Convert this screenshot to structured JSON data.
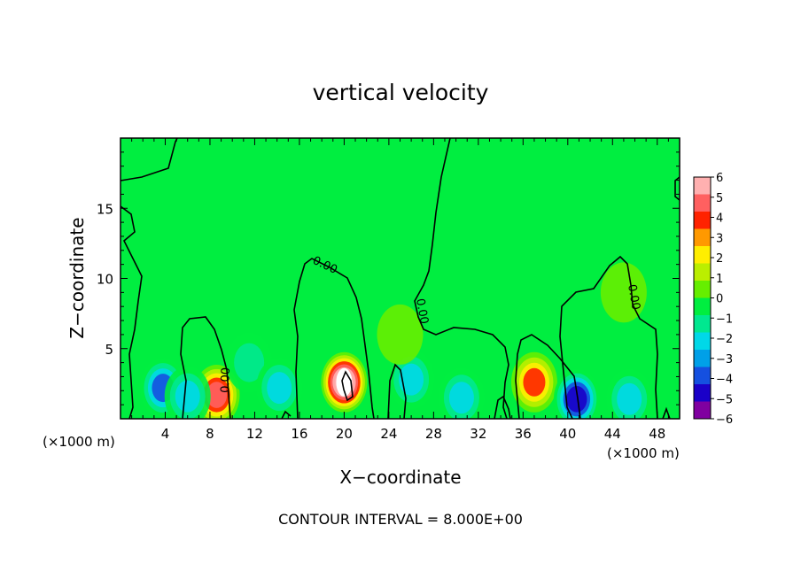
{
  "chart_data": {
    "type": "heatmap",
    "title": "vertical velocity",
    "xlabel": "X−coordinate",
    "ylabel": "Z−coordinate",
    "x_unit_left": "(×1000 m)",
    "x_unit_right": "(×1000 m)",
    "footer": "CONTOUR INTERVAL = 8.000E+00",
    "xlim": [
      0,
      50
    ],
    "ylim": [
      0,
      20
    ],
    "x_ticks": [
      4,
      8,
      12,
      16,
      20,
      24,
      28,
      32,
      36,
      40,
      44,
      48
    ],
    "y_ticks": [
      5,
      10,
      15
    ],
    "contour_labels": [
      "0.00",
      "0.00",
      "0.00",
      "0.00"
    ],
    "colorbar": {
      "min": -6,
      "max": 6,
      "tick_labels": [
        "6",
        "5",
        "4",
        "3",
        "2",
        "1",
        "0",
        "−1",
        "−2",
        "−3",
        "−4",
        "−5",
        "−6"
      ],
      "colors": [
        "#8000a0",
        "#1a00c8",
        "#1550e0",
        "#00a0e8",
        "#00d8e8",
        "#00e890",
        "#00ee40",
        "#66ee00",
        "#bbee00",
        "#ffee00",
        "#ff9900",
        "#ff2200",
        "#ff6060",
        "#ffb0b0"
      ]
    },
    "features": [
      {
        "x": 8.6,
        "z": 1.7,
        "value": 4.5
      },
      {
        "x": 20.0,
        "z": 2.6,
        "value": 6.5
      },
      {
        "x": 37.0,
        "z": 2.6,
        "value": 3.5
      },
      {
        "x": 3.8,
        "z": 2.2,
        "value": -3.5
      },
      {
        "x": 6.0,
        "z": 1.6,
        "value": -3.0
      },
      {
        "x": 11.5,
        "z": 4.0,
        "value": -2.0
      },
      {
        "x": 14.2,
        "z": 2.2,
        "value": -2.5
      },
      {
        "x": 26.0,
        "z": 2.8,
        "value": -3.0
      },
      {
        "x": 30.5,
        "z": 1.5,
        "value": -3.0
      },
      {
        "x": 40.8,
        "z": 1.4,
        "value": -5.0
      },
      {
        "x": 45.5,
        "z": 1.4,
        "value": -3.0
      },
      {
        "x": 25.0,
        "z": 6.0,
        "value": 0.6
      },
      {
        "x": 45.0,
        "z": 9.0,
        "value": 0.8
      }
    ]
  }
}
